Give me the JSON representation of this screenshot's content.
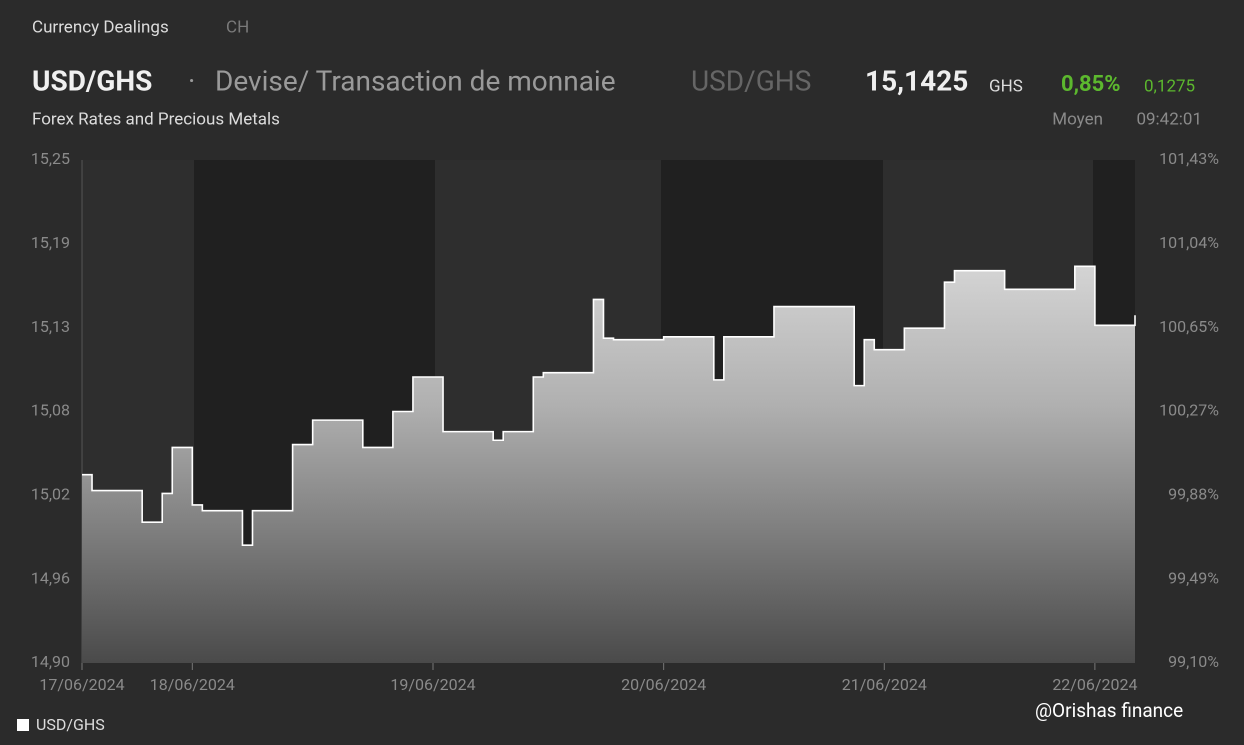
{
  "header": {
    "section": "Currency Dealings",
    "tab": "CH",
    "symbol": "USD/GHS",
    "separator": "·",
    "description": "Devise/ Transaction de monnaie",
    "symbol_alt": "USD/GHS",
    "price": "15,1425",
    "currency": "GHS",
    "change_pct": "0,85%",
    "change": "0,1275",
    "subtitle": "Forex Rates and Precious Metals",
    "price_type": "Moyen",
    "time": "09:42:01"
  },
  "chart_data": {
    "type": "area",
    "categories": [
      "17/06/2024",
      null,
      null,
      null,
      null,
      null,
      null,
      null,
      null,
      null,
      null,
      "18/06/2024",
      null,
      null,
      null,
      null,
      null,
      null,
      null,
      null,
      null,
      null,
      null,
      null,
      null,
      null,
      null,
      null,
      null,
      null,
      null,
      null,
      null,
      null,
      null,
      "19/06/2024",
      null,
      null,
      null,
      null,
      null,
      null,
      null,
      null,
      null,
      null,
      null,
      null,
      null,
      null,
      null,
      null,
      null,
      null,
      null,
      null,
      null,
      null,
      "20/06/2024",
      null,
      null,
      null,
      null,
      null,
      null,
      null,
      null,
      null,
      null,
      null,
      null,
      null,
      null,
      null,
      null,
      null,
      null,
      null,
      null,
      null,
      "21/06/2024",
      null,
      null,
      null,
      null,
      null,
      null,
      null,
      null,
      null,
      null,
      null,
      null,
      null,
      null,
      null,
      null,
      null,
      null,
      null,
      null,
      "22/06/2024",
      null,
      null,
      null,
      null
    ],
    "series": [
      {
        "name": "USD/GHS",
        "color": "#ffffff",
        "values": [
          15.031,
          15.02,
          15.02,
          15.02,
          15.02,
          15.02,
          14.998,
          14.998,
          15.018,
          15.05,
          15.05,
          15.01,
          15.006,
          15.006,
          15.006,
          15.006,
          14.982,
          15.006,
          15.006,
          15.006,
          15.006,
          15.052,
          15.052,
          15.069,
          15.069,
          15.069,
          15.069,
          15.069,
          15.05,
          15.05,
          15.05,
          15.075,
          15.075,
          15.099,
          15.099,
          15.099,
          15.061,
          15.061,
          15.061,
          15.061,
          15.061,
          15.055,
          15.061,
          15.061,
          15.061,
          15.099,
          15.102,
          15.102,
          15.102,
          15.102,
          15.102,
          15.153,
          15.126,
          15.125,
          15.125,
          15.125,
          15.125,
          15.125,
          15.127,
          15.127,
          15.127,
          15.127,
          15.127,
          15.097,
          15.127,
          15.127,
          15.127,
          15.127,
          15.127,
          15.148,
          15.148,
          15.148,
          15.148,
          15.148,
          15.148,
          15.148,
          15.148,
          15.093,
          15.125,
          15.118,
          15.118,
          15.118,
          15.133,
          15.133,
          15.133,
          15.133,
          15.165,
          15.173,
          15.173,
          15.173,
          15.173,
          15.173,
          15.16,
          15.16,
          15.16,
          15.16,
          15.16,
          15.16,
          15.16,
          15.176,
          15.176,
          15.135,
          15.135,
          15.135,
          15.135,
          15.142
        ]
      }
    ],
    "ylim": [
      14.9,
      15.25
    ],
    "yticks": [
      {
        "value": 14.9,
        "label": "14,90"
      },
      {
        "value": 14.9583,
        "label": "14,96"
      },
      {
        "value": 15.0167,
        "label": "15,02"
      },
      {
        "value": 15.075,
        "label": "15,08"
      },
      {
        "value": 15.1333,
        "label": "15,13"
      },
      {
        "value": 15.1917,
        "label": "15,19"
      },
      {
        "value": 15.25,
        "label": "15,25"
      }
    ],
    "y2lim": [
      99.1,
      101.43
    ],
    "y2ticks": [
      {
        "value": 99.1,
        "label": "99,10%"
      },
      {
        "value": 99.4883,
        "label": "99,49%"
      },
      {
        "value": 99.8767,
        "label": "99,88%"
      },
      {
        "value": 100.2655,
        "label": "100,27%"
      },
      {
        "value": 100.6533,
        "label": "100,65%"
      },
      {
        "value": 101.0417,
        "label": "101,04%"
      },
      {
        "value": 101.43,
        "label": "101,43%"
      }
    ],
    "legend": "bottom-left",
    "watermark": "@Orishas finance"
  }
}
